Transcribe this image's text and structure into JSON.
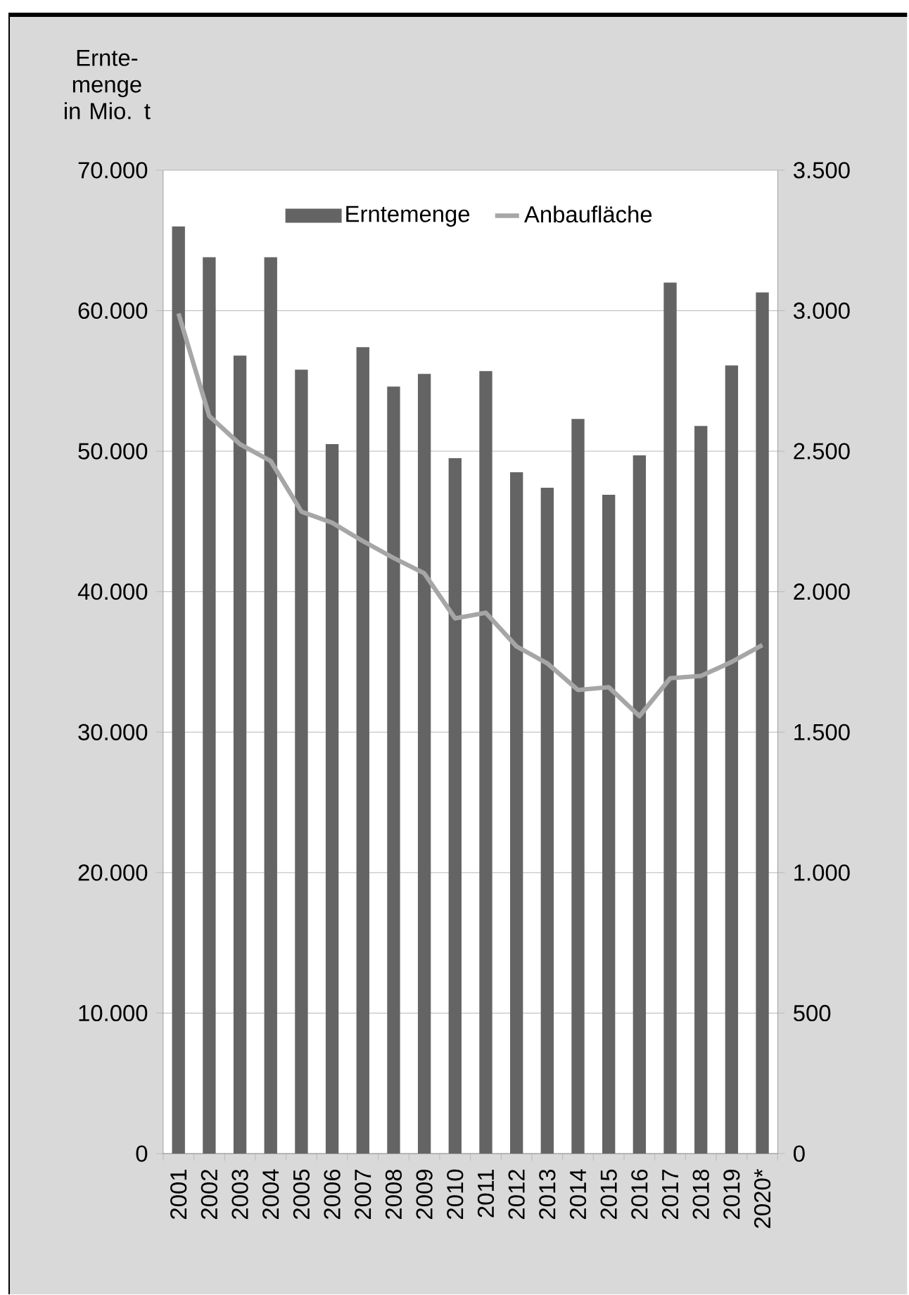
{
  "chart_data": {
    "type": "bar",
    "ylabel": "Ernte-menge in Mio. t",
    "categories": [
      "2001",
      "2002",
      "2003",
      "2004",
      "2005",
      "2006",
      "2007",
      "2008",
      "2009",
      "2010",
      "2011",
      "2012",
      "2013",
      "2014",
      "2015",
      "2016",
      "2017",
      "2018",
      "2019",
      "2020*"
    ],
    "series": [
      {
        "name": "Erntemenge",
        "color": "#646464",
        "values": [
          66000,
          63800,
          56800,
          63800,
          55800,
          50500,
          57400,
          54600,
          55500,
          49500,
          55700,
          48500,
          47400,
          52300,
          46900,
          49700,
          62000,
          51800,
          56100,
          61300
        ]
      },
      {
        "name": "Anbaufläche",
        "type": "line",
        "axis": "y2",
        "color": "#a6a6a6",
        "values": [
          2990,
          2625,
          2525,
          2465,
          2285,
          2245,
          2180,
          2120,
          2065,
          1905,
          1925,
          1805,
          1745,
          1650,
          1660,
          1557,
          1692,
          1700,
          1750,
          1810
        ]
      }
    ],
    "ylim": [
      0,
      70000
    ],
    "yticks": [
      0,
      {
        "value": 10000,
        "label": "10.000"
      },
      {
        "value": 20000,
        "label": "20.000"
      },
      {
        "value": 30000,
        "label": "30.000"
      },
      {
        "value": 40000,
        "label": "40.000"
      },
      {
        "value": 50000,
        "label": "50.000"
      },
      {
        "value": 60000,
        "label": "60.000"
      },
      {
        "value": 70000,
        "label": "70.000"
      }
    ],
    "y2lim": [
      0,
      3500
    ],
    "y2ticks": [
      0,
      500,
      {
        "value": 1000,
        "label": "1.000"
      },
      {
        "value": 1500,
        "label": "1.500"
      },
      {
        "value": 2000,
        "label": "2.000"
      },
      {
        "value": 2500,
        "label": "2.500"
      },
      {
        "value": 3000,
        "label": "3.000"
      },
      {
        "value": 3500,
        "label": "3.500"
      }
    ],
    "grid": "y",
    "legend": "top",
    "marker": "none",
    "line_style": "solid"
  }
}
